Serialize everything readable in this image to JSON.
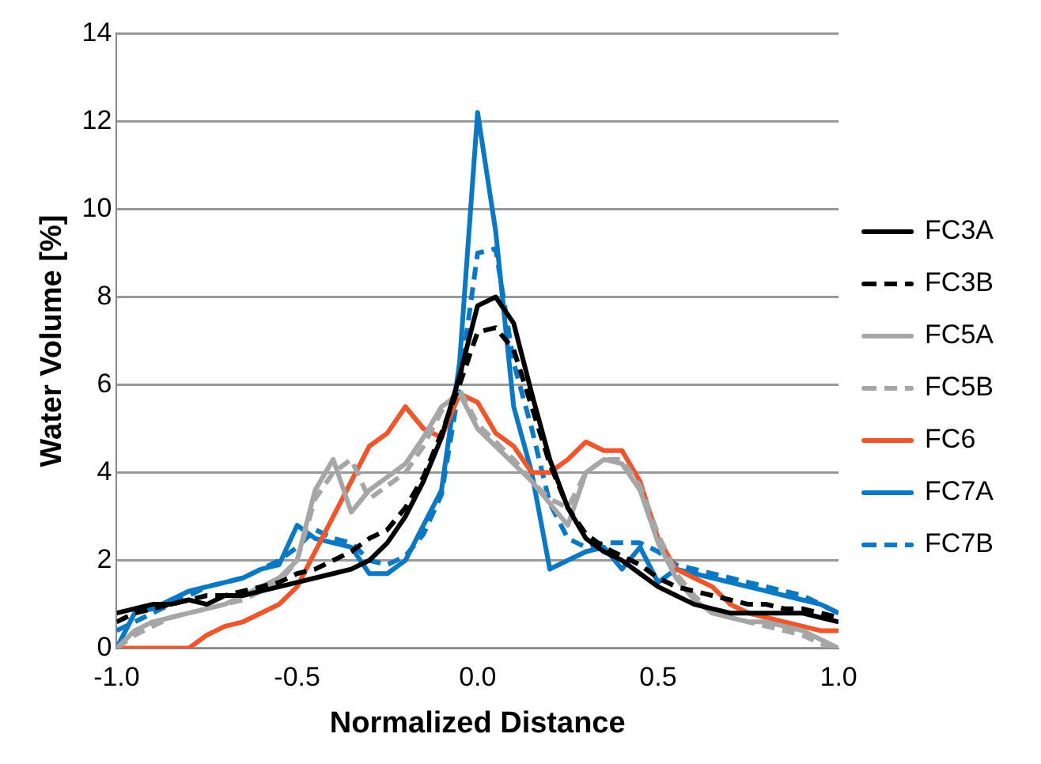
{
  "chart_data": {
    "type": "line",
    "xlabel": "Normalized Distance",
    "ylabel": "Water Volume [%]",
    "x": [
      -1,
      -0.95,
      -0.9,
      -0.85,
      -0.8,
      -0.75,
      -0.7,
      -0.65,
      -0.6,
      -0.55,
      -0.5,
      -0.45,
      -0.4,
      -0.35,
      -0.3,
      -0.25,
      -0.2,
      -0.15,
      -0.1,
      -0.05,
      0,
      0.05,
      0.1,
      0.15,
      0.2,
      0.25,
      0.3,
      0.35,
      0.4,
      0.45,
      0.5,
      0.55,
      0.6,
      0.65,
      0.7,
      0.75,
      0.8,
      0.85,
      0.9,
      0.95,
      1
    ],
    "series": [
      {
        "name": "FC3A",
        "color": "#000000",
        "line_style": "solid",
        "values": [
          0.8,
          0.9,
          1.0,
          1.0,
          1.1,
          1.0,
          1.2,
          1.2,
          1.3,
          1.4,
          1.5,
          1.6,
          1.7,
          1.8,
          2.0,
          2.4,
          3.0,
          3.8,
          4.8,
          6.2,
          7.8,
          8.0,
          7.4,
          5.8,
          4.3,
          3.2,
          2.5,
          2.2,
          2.0,
          1.7,
          1.4,
          1.2,
          1.0,
          0.9,
          0.8,
          0.8,
          0.8,
          0.8,
          0.8,
          0.7,
          0.6
        ]
      },
      {
        "name": "FC3B",
        "color": "#000000",
        "line_style": "dashed",
        "values": [
          0.6,
          0.8,
          0.9,
          1.0,
          1.1,
          1.2,
          1.2,
          1.3,
          1.4,
          1.5,
          1.7,
          1.8,
          2.0,
          2.2,
          2.5,
          2.7,
          3.2,
          3.9,
          4.9,
          6.0,
          7.2,
          7.3,
          6.8,
          5.5,
          4.2,
          3.2,
          2.6,
          2.3,
          2.1,
          1.9,
          1.6,
          1.4,
          1.3,
          1.2,
          1.1,
          1.0,
          1.0,
          0.9,
          0.9,
          0.8,
          0.7
        ]
      },
      {
        "name": "FC5A",
        "color": "#a6a6a6",
        "line_style": "solid",
        "values": [
          0,
          0.4,
          0.6,
          0.7,
          0.8,
          0.9,
          1.0,
          1.2,
          1.4,
          1.6,
          2.0,
          3.6,
          4.3,
          3.1,
          3.6,
          3.9,
          4.2,
          4.8,
          5.5,
          5.8,
          5.0,
          4.6,
          4.2,
          3.8,
          3.3,
          2.8,
          4.0,
          4.3,
          4.2,
          3.6,
          2.4,
          1.6,
          1.1,
          0.8,
          0.7,
          0.6,
          0.6,
          0.5,
          0.4,
          0.2,
          0
        ]
      },
      {
        "name": "FC5B",
        "color": "#a6a6a6",
        "line_style": "dashed",
        "values": [
          0,
          0.3,
          0.5,
          0.7,
          0.8,
          0.9,
          1.0,
          1.1,
          1.3,
          1.5,
          2.0,
          3.4,
          4.0,
          4.3,
          3.4,
          3.7,
          4.0,
          4.6,
          5.4,
          5.9,
          5.1,
          4.7,
          4.3,
          3.8,
          3.4,
          3.2,
          4.0,
          4.3,
          4.3,
          3.7,
          2.6,
          1.7,
          1.2,
          0.8,
          0.7,
          0.6,
          0.5,
          0.4,
          0.3,
          0.1,
          0
        ]
      },
      {
        "name": "FC6",
        "color": "#f0562c",
        "line_style": "solid",
        "values": [
          0,
          0,
          0,
          0,
          0,
          0.3,
          0.5,
          0.6,
          0.8,
          1.0,
          1.4,
          2.2,
          3.0,
          3.8,
          4.6,
          4.9,
          5.5,
          5.0,
          4.8,
          5.8,
          5.6,
          4.9,
          4.6,
          4.0,
          4.0,
          4.3,
          4.7,
          4.5,
          4.5,
          3.8,
          2.5,
          1.8,
          1.6,
          1.4,
          1.0,
          0.8,
          0.7,
          0.6,
          0.5,
          0.4,
          0.4
        ]
      },
      {
        "name": "FC7A",
        "color": "#0a78c2",
        "line_style": "solid",
        "values": [
          0,
          0.8,
          0.9,
          1.1,
          1.3,
          1.4,
          1.5,
          1.6,
          1.8,
          1.9,
          2.8,
          2.5,
          2.4,
          2.3,
          1.7,
          1.7,
          2.0,
          2.8,
          3.6,
          6.5,
          12.2,
          9.5,
          5.5,
          4.0,
          1.8,
          2.0,
          2.2,
          2.3,
          1.8,
          2.3,
          1.5,
          1.8,
          1.7,
          1.6,
          1.5,
          1.4,
          1.3,
          1.2,
          1.1,
          1.0,
          0.8
        ]
      },
      {
        "name": "FC7B",
        "color": "#0a78c2",
        "line_style": "dashed",
        "values": [
          0.4,
          0.6,
          0.8,
          1.0,
          1.2,
          1.4,
          1.5,
          1.6,
          1.8,
          2.0,
          2.3,
          2.7,
          2.5,
          2.4,
          2.0,
          1.9,
          2.1,
          2.6,
          3.5,
          6.0,
          9.0,
          9.1,
          6.5,
          5.0,
          3.3,
          2.5,
          2.3,
          2.4,
          2.4,
          2.4,
          2.2,
          1.9,
          1.8,
          1.7,
          1.6,
          1.5,
          1.4,
          1.3,
          1.2,
          1.0,
          0.8
        ]
      }
    ],
    "xlim": [
      -1,
      1
    ],
    "xticks": [
      {
        "value": -1,
        "label": "-1.0"
      },
      {
        "value": -0.5,
        "label": "-0.5"
      },
      {
        "value": 0,
        "label": "0.0"
      },
      {
        "value": 0.5,
        "label": "0.5"
      },
      {
        "value": 1,
        "label": "1.0"
      }
    ],
    "ylim": [
      0,
      14
    ],
    "yticks": [
      0,
      2,
      4,
      6,
      8,
      10,
      12,
      14
    ],
    "grid": "y",
    "legend": "right",
    "marker": "none"
  }
}
